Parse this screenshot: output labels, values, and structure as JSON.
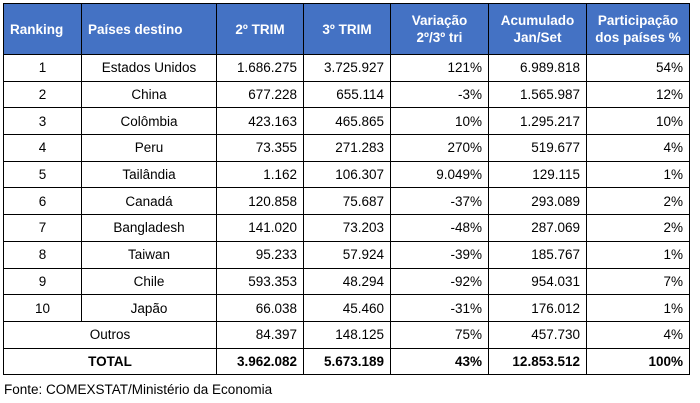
{
  "headers": {
    "ranking": "Ranking",
    "paises": "Países destino",
    "trim2": "2º TRIM",
    "trim3": "3º TRIM",
    "variacao_l1": "Variação",
    "variacao_l2": "2º/3º tri",
    "acumulado_l1": "Acumulado",
    "acumulado_l2": "Jan/Set",
    "participacao_l1": "Participação",
    "participacao_l2": "dos países %"
  },
  "rows": [
    {
      "ranking": "1",
      "pais": "Estados Unidos",
      "trim2": "1.686.275",
      "trim3": "3.725.927",
      "variacao": "121%",
      "acumulado": "6.989.818",
      "participacao": "54%"
    },
    {
      "ranking": "2",
      "pais": "China",
      "trim2": "677.228",
      "trim3": "655.114",
      "variacao": "-3%",
      "acumulado": "1.565.987",
      "participacao": "12%"
    },
    {
      "ranking": "3",
      "pais": "Colômbia",
      "trim2": "423.163",
      "trim3": "465.865",
      "variacao": "10%",
      "acumulado": "1.295.217",
      "participacao": "10%"
    },
    {
      "ranking": "4",
      "pais": "Peru",
      "trim2": "73.355",
      "trim3": "271.283",
      "variacao": "270%",
      "acumulado": "519.677",
      "participacao": "4%"
    },
    {
      "ranking": "5",
      "pais": "Tailândia",
      "trim2": "1.162",
      "trim3": "106.307",
      "variacao": "9.049%",
      "acumulado": "129.115",
      "participacao": "1%"
    },
    {
      "ranking": "6",
      "pais": "Canadá",
      "trim2": "120.858",
      "trim3": "75.687",
      "variacao": "-37%",
      "acumulado": "293.089",
      "participacao": "2%"
    },
    {
      "ranking": "7",
      "pais": "Bangladesh",
      "trim2": "141.020",
      "trim3": "73.203",
      "variacao": "-48%",
      "acumulado": "287.069",
      "participacao": "2%"
    },
    {
      "ranking": "8",
      "pais": "Taiwan",
      "trim2": "95.233",
      "trim3": "57.924",
      "variacao": "-39%",
      "acumulado": "185.767",
      "participacao": "1%"
    },
    {
      "ranking": "9",
      "pais": "Chile",
      "trim2": "593.353",
      "trim3": "48.294",
      "variacao": "-92%",
      "acumulado": "954.031",
      "participacao": "7%"
    },
    {
      "ranking": "10",
      "pais": "Japão",
      "trim2": "66.038",
      "trim3": "45.460",
      "variacao": "-31%",
      "acumulado": "176.012",
      "participacao": "1%"
    }
  ],
  "outros": {
    "label": "Outros",
    "trim2": "84.397",
    "trim3": "148.125",
    "variacao": "75%",
    "acumulado": "457.730",
    "participacao": "4%"
  },
  "total": {
    "label": "TOTAL",
    "trim2": "3.962.082",
    "trim3": "5.673.189",
    "variacao": "43%",
    "acumulado": "12.853.512",
    "participacao": "100%"
  },
  "source": "Fonte: COMEXSTAT/Ministério da Economia"
}
